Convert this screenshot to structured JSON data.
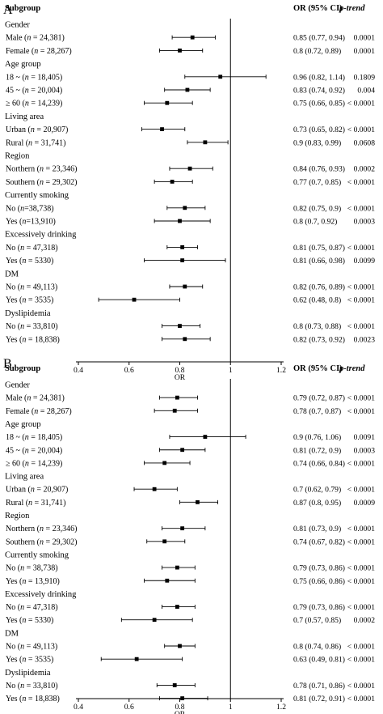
{
  "chart_data": [
    {
      "type": "forest",
      "panel_label": "A",
      "columns": [
        "Subgroup",
        "OR (95% CI)",
        "p-trend"
      ],
      "xlabel": "OR",
      "xlim": [
        0.4,
        1.2
      ],
      "x_ticks": [
        "0.4",
        "0.6",
        "0.8",
        "1",
        "1.2"
      ],
      "reference_line": 1,
      "rows": [
        {
          "kind": "group",
          "label": "Gender"
        },
        {
          "kind": "item",
          "pre": "Male (",
          "n_var": "n",
          "post": " = 24,381)",
          "or": 0.85,
          "lo": 0.77,
          "hi": 0.94,
          "ci_text": "0.85 (0.77, 0.94)",
          "p": "0.0001"
        },
        {
          "kind": "item",
          "pre": "Female (",
          "n_var": "n",
          "post": " = 28,267)",
          "or": 0.8,
          "lo": 0.72,
          "hi": 0.89,
          "ci_text": "0.8 (0.72, 0.89)",
          "p": "0.0001"
        },
        {
          "kind": "group",
          "label": "Age group"
        },
        {
          "kind": "item",
          "pre": "18 ~ (",
          "n_var": "n",
          "post": " = 18,405)",
          "or": 0.96,
          "lo": 0.82,
          "hi": 1.14,
          "ci_text": "0.96 (0.82, 1.14)",
          "p": "0.1809"
        },
        {
          "kind": "item",
          "pre": "45 ~ (",
          "n_var": "n",
          "post": " = 20,004)",
          "or": 0.83,
          "lo": 0.74,
          "hi": 0.92,
          "ci_text": "0.83 (0.74, 0.92)",
          "p": "0.004"
        },
        {
          "kind": "item",
          "pre": "≥ 60 (",
          "n_var": "n",
          "post": " = 14,239)",
          "or": 0.75,
          "lo": 0.66,
          "hi": 0.85,
          "ci_text": "0.75 (0.66, 0.85)",
          "p": "< 0.0001"
        },
        {
          "kind": "group",
          "label": "Living area"
        },
        {
          "kind": "item",
          "pre": "Urban (",
          "n_var": "n",
          "post": " = 20,907)",
          "or": 0.73,
          "lo": 0.65,
          "hi": 0.82,
          "ci_text": "0.73 (0.65, 0.82)",
          "p": "< 0.0001"
        },
        {
          "kind": "item",
          "pre": "Rural (",
          "n_var": "n",
          "post": " = 31,741)",
          "or": 0.9,
          "lo": 0.83,
          "hi": 0.99,
          "ci_text": "0.9 (0.83, 0.99)",
          "p": "0.0608"
        },
        {
          "kind": "group",
          "label": "Region"
        },
        {
          "kind": "item",
          "pre": "Northern (",
          "n_var": "n",
          "post": " = 23,346)",
          "or": 0.84,
          "lo": 0.76,
          "hi": 0.93,
          "ci_text": "0.84 (0.76, 0.93)",
          "p": "0.0002"
        },
        {
          "kind": "item",
          "pre": "Southern (",
          "n_var": "n",
          "post": " = 29,302)",
          "or": 0.77,
          "lo": 0.7,
          "hi": 0.85,
          "ci_text": "0.77 (0.7, 0.85)",
          "p": "< 0.0001"
        },
        {
          "kind": "group",
          "label": "Currently smoking"
        },
        {
          "kind": "item",
          "pre": "No (",
          "n_var": "n",
          "post": "=38,738)",
          "or": 0.82,
          "lo": 0.75,
          "hi": 0.9,
          "ci_text": "0.82 (0.75, 0.9)",
          "p": "< 0.0001"
        },
        {
          "kind": "item",
          "pre": "Yes (",
          "n_var": "n",
          "post": "=13,910)",
          "or": 0.8,
          "lo": 0.7,
          "hi": 0.92,
          "ci_text": "0.8 (0.7, 0.92)",
          "p": "0.0003"
        },
        {
          "kind": "group",
          "label": "Excessively drinking"
        },
        {
          "kind": "item",
          "pre": "No (",
          "n_var": "n",
          "post": " = 47,318)",
          "or": 0.81,
          "lo": 0.75,
          "hi": 0.87,
          "ci_text": "0.81 (0.75, 0.87)",
          "p": "< 0.0001"
        },
        {
          "kind": "item",
          "pre": "Yes (",
          "n_var": "n",
          "post": " = 5330)",
          "or": 0.81,
          "lo": 0.66,
          "hi": 0.98,
          "ci_text": "0.81 (0.66, 0.98)",
          "p": "0.0099"
        },
        {
          "kind": "group",
          "label": "DM"
        },
        {
          "kind": "item",
          "pre": "No (",
          "n_var": "n",
          "post": " = 49,113)",
          "or": 0.82,
          "lo": 0.76,
          "hi": 0.89,
          "ci_text": "0.82 (0.76, 0.89)",
          "p": "< 0.0001"
        },
        {
          "kind": "item",
          "pre": "Yes (",
          "n_var": "n",
          "post": " = 3535)",
          "or": 0.62,
          "lo": 0.48,
          "hi": 0.8,
          "ci_text": "0.62 (0.48, 0.8)",
          "p": "< 0.0001"
        },
        {
          "kind": "group",
          "label": "Dyslipidemia"
        },
        {
          "kind": "item",
          "pre": "No (",
          "n_var": "n",
          "post": " = 33,810)",
          "or": 0.8,
          "lo": 0.73,
          "hi": 0.88,
          "ci_text": "0.8 (0.73, 0.88)",
          "p": "< 0.0001"
        },
        {
          "kind": "item",
          "pre": "Yes (",
          "n_var": "n",
          "post": " = 18,838)",
          "or": 0.82,
          "lo": 0.73,
          "hi": 0.92,
          "ci_text": "0.82 (0.73, 0.92)",
          "p": "0.0023"
        }
      ]
    },
    {
      "type": "forest",
      "panel_label": "B",
      "columns": [
        "Subgroup",
        "OR (95% CI)",
        "p-trend"
      ],
      "xlabel": "OR",
      "xlim": [
        0.4,
        1.2
      ],
      "x_ticks": [
        "0.4",
        "0.6",
        "0.8",
        "1",
        "1.2"
      ],
      "reference_line": 1,
      "rows": [
        {
          "kind": "group",
          "label": "Gender"
        },
        {
          "kind": "item",
          "pre": "Male (",
          "n_var": "n",
          "post": " = 24,381)",
          "or": 0.79,
          "lo": 0.72,
          "hi": 0.87,
          "ci_text": "0.79 (0.72, 0.87)",
          "p": "< 0.0001"
        },
        {
          "kind": "item",
          "pre": "Female (",
          "n_var": "n",
          "post": " = 28,267)",
          "or": 0.78,
          "lo": 0.7,
          "hi": 0.87,
          "ci_text": "0.78 (0.7, 0.87)",
          "p": "< 0.0001"
        },
        {
          "kind": "group",
          "label": "Age group"
        },
        {
          "kind": "item",
          "pre": "18 ~ (",
          "n_var": "n",
          "post": " = 18,405)",
          "or": 0.9,
          "lo": 0.76,
          "hi": 1.06,
          "ci_text": "0.9 (0.76, 1.06)",
          "p": "0.0091"
        },
        {
          "kind": "item",
          "pre": "45 ~ (",
          "n_var": "n",
          "post": " = 20,004)",
          "or": 0.81,
          "lo": 0.72,
          "hi": 0.9,
          "ci_text": "0.81 (0.72, 0.9)",
          "p": "0.0003"
        },
        {
          "kind": "item",
          "pre": "≥ 60 (",
          "n_var": "n",
          "post": " = 14,239)",
          "or": 0.74,
          "lo": 0.66,
          "hi": 0.84,
          "ci_text": "0.74 (0.66, 0.84)",
          "p": "< 0.0001"
        },
        {
          "kind": "group",
          "label": "Living area"
        },
        {
          "kind": "item",
          "pre": "Urban (",
          "n_var": "n",
          "post": " = 20,907)",
          "or": 0.7,
          "lo": 0.62,
          "hi": 0.79,
          "ci_text": "0.7 (0.62, 0.79)",
          "p": "< 0.0001"
        },
        {
          "kind": "item",
          "pre": "Rural (",
          "n_var": "n",
          "post": " = 31,741)",
          "or": 0.87,
          "lo": 0.8,
          "hi": 0.95,
          "ci_text": "0.87 (0.8, 0.95)",
          "p": "0.0009"
        },
        {
          "kind": "group",
          "label": "Region"
        },
        {
          "kind": "item",
          "pre": "Northern (",
          "n_var": "n",
          "post": " = 23,346)",
          "or": 0.81,
          "lo": 0.73,
          "hi": 0.9,
          "ci_text": "0.81 (0.73, 0.9)",
          "p": "< 0.0001"
        },
        {
          "kind": "item",
          "pre": "Southern (",
          "n_var": "n",
          "post": " = 29,302)",
          "or": 0.74,
          "lo": 0.67,
          "hi": 0.82,
          "ci_text": "0.74 (0.67, 0.82)",
          "p": "< 0.0001"
        },
        {
          "kind": "group",
          "label": "Currently smoking"
        },
        {
          "kind": "item",
          "pre": "No (",
          "n_var": "n",
          "post": " = 38,738)",
          "or": 0.79,
          "lo": 0.73,
          "hi": 0.86,
          "ci_text": "0.79 (0.73, 0.86)",
          "p": "< 0.0001"
        },
        {
          "kind": "item",
          "pre": "Yes (",
          "n_var": "n",
          "post": " = 13,910)",
          "or": 0.75,
          "lo": 0.66,
          "hi": 0.86,
          "ci_text": "0.75 (0.66, 0.86)",
          "p": "< 0.0001"
        },
        {
          "kind": "group",
          "label": "Excessively drinking"
        },
        {
          "kind": "item",
          "pre": "No (",
          "n_var": "n",
          "post": " = 47,318)",
          "or": 0.79,
          "lo": 0.73,
          "hi": 0.86,
          "ci_text": "0.79 (0.73, 0.86)",
          "p": "< 0.0001"
        },
        {
          "kind": "item",
          "pre": "Yes (",
          "n_var": "n",
          "post": " = 5330)",
          "or": 0.7,
          "lo": 0.57,
          "hi": 0.85,
          "ci_text": "0.7 (0.57, 0.85)",
          "p": "0.0002"
        },
        {
          "kind": "group",
          "label": "DM"
        },
        {
          "kind": "item",
          "pre": "No (",
          "n_var": "n",
          "post": " = 49,113)",
          "or": 0.8,
          "lo": 0.74,
          "hi": 0.86,
          "ci_text": "0.8 (0.74, 0.86)",
          "p": "< 0.0001"
        },
        {
          "kind": "item",
          "pre": "Yes (",
          "n_var": "n",
          "post": " = 3535)",
          "or": 0.63,
          "lo": 0.49,
          "hi": 0.81,
          "ci_text": "0.63 (0.49, 0.81)",
          "p": "< 0.0001"
        },
        {
          "kind": "group",
          "label": "Dyslipidemia"
        },
        {
          "kind": "item",
          "pre": "No (",
          "n_var": "n",
          "post": " = 33,810)",
          "or": 0.78,
          "lo": 0.71,
          "hi": 0.86,
          "ci_text": "0.78 (0.71, 0.86)",
          "p": "< 0.0001"
        },
        {
          "kind": "item",
          "pre": "Yes (",
          "n_var": "n",
          "post": " = 18,838)",
          "or": 0.81,
          "lo": 0.72,
          "hi": 0.91,
          "ci_text": "0.81 (0.72, 0.91)",
          "p": "< 0.0001"
        }
      ]
    }
  ]
}
